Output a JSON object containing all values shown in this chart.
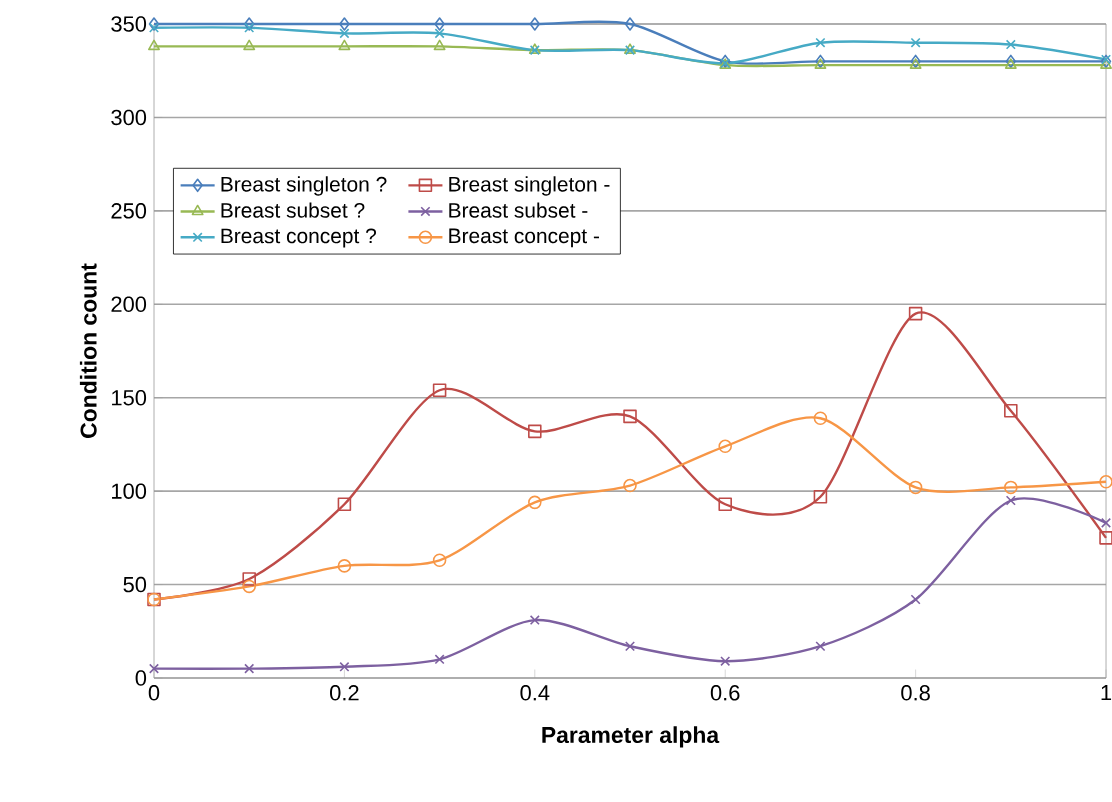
{
  "chart_data": {
    "type": "line",
    "xlabel": "Parameter alpha",
    "ylabel": "Condition count",
    "x": [
      0,
      0.1,
      0.2,
      0.3,
      0.4,
      0.5,
      0.6,
      0.7,
      0.8,
      0.9,
      1
    ],
    "series": [
      {
        "name": "Breast singleton ?",
        "color": "#4a7ebb",
        "marker": "diamond",
        "values": [
          350,
          350,
          350,
          350,
          350,
          350,
          330,
          330,
          330,
          330,
          330
        ]
      },
      {
        "name": "Breast singleton -",
        "color": "#be4b48",
        "marker": "square",
        "values": [
          42,
          53,
          93,
          154,
          132,
          140,
          93,
          97,
          195,
          143,
          75
        ]
      },
      {
        "name": "Breast subset ?",
        "color": "#98b954",
        "marker": "triangle",
        "values": [
          338,
          338,
          338,
          338,
          336,
          336,
          328,
          328,
          328,
          328,
          328
        ]
      },
      {
        "name": "Breast subset -",
        "color": "#7d60a0",
        "marker": "cross",
        "values": [
          5,
          5,
          6,
          10,
          31,
          17,
          9,
          17,
          42,
          95,
          83
        ]
      },
      {
        "name": "Breast concept ?",
        "color": "#46aac5",
        "marker": "cross",
        "values": [
          348,
          348,
          345,
          345,
          336,
          336,
          329,
          340,
          340,
          339,
          331
        ]
      },
      {
        "name": "Breast concept -",
        "color": "#f79646",
        "marker": "circle",
        "values": [
          42,
          49,
          60,
          63,
          94,
          103,
          124,
          139,
          102,
          102,
          105
        ]
      }
    ],
    "xlim": [
      0,
      1
    ],
    "xticks": [
      0,
      0.2,
      0.4,
      0.6,
      0.8,
      1
    ],
    "ylim": [
      0,
      350
    ],
    "yticks": [
      0,
      50,
      100,
      150,
      200,
      250,
      300,
      350
    ],
    "grid": "y",
    "legend": "top left",
    "line_style": "solid"
  }
}
